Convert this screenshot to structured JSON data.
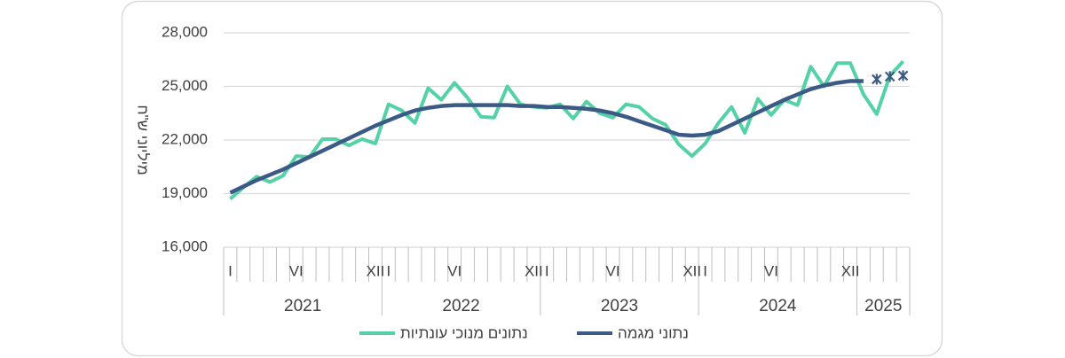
{
  "chart_data": {
    "type": "line",
    "y_label": "מיליוני ש\"ח",
    "categories": [
      "I",
      null,
      null,
      null,
      null,
      "VI",
      null,
      null,
      null,
      null,
      null,
      "XII",
      "I",
      null,
      null,
      null,
      null,
      "VI",
      null,
      null,
      null,
      null,
      null,
      "XII",
      "I",
      null,
      null,
      null,
      null,
      "VI",
      null,
      null,
      null,
      null,
      null,
      "XII",
      "I",
      null,
      null,
      null,
      null,
      "VI",
      null,
      null,
      null,
      null,
      null,
      "XII",
      null,
      null,
      null,
      null
    ],
    "years": [
      "2021",
      "2022",
      "2023",
      "2024",
      "2025"
    ],
    "series": [
      {
        "name": "נתונים מנוכי עונתיות",
        "color": "#54d1a6",
        "values": [
          18700,
          19350,
          19950,
          19650,
          20000,
          21100,
          21050,
          22050,
          22050,
          21700,
          22050,
          21800,
          24000,
          23650,
          22950,
          24900,
          24250,
          25200,
          24350,
          23300,
          23250,
          25000,
          24000,
          23850,
          23800,
          24000,
          23200,
          24150,
          23500,
          23250,
          24000,
          23850,
          23200,
          22850,
          21750,
          21100,
          21800,
          22950,
          23850,
          22400,
          24300,
          23400,
          24250,
          23950,
          26100,
          25000,
          26300,
          26300,
          24550,
          23450,
          25600,
          26400
        ]
      },
      {
        "name": "נתוני מגמה",
        "color": "#3b5b86",
        "star_markers_from": 49,
        "values": [
          19050,
          19400,
          19750,
          20050,
          20350,
          20700,
          21050,
          21400,
          21750,
          22100,
          22450,
          22800,
          23100,
          23400,
          23650,
          23800,
          23900,
          23950,
          23950,
          23950,
          23950,
          23950,
          23900,
          23900,
          23850,
          23850,
          23800,
          23750,
          23650,
          23500,
          23300,
          23050,
          22800,
          22550,
          22300,
          22250,
          22300,
          22500,
          22850,
          23200,
          23550,
          23900,
          24250,
          24550,
          24850,
          25050,
          25200,
          25300,
          25300,
          25400,
          25550,
          25600
        ]
      }
    ],
    "ylim": [
      16000,
      28000
    ],
    "yticks": [
      {
        "value": 16000,
        "label": "16,000"
      },
      {
        "value": 19000,
        "label": "19,000"
      },
      {
        "value": 22000,
        "label": "22,000"
      },
      {
        "value": 25000,
        "label": "25,000"
      },
      {
        "value": 28000,
        "label": "28,000"
      }
    ],
    "grid": true
  }
}
